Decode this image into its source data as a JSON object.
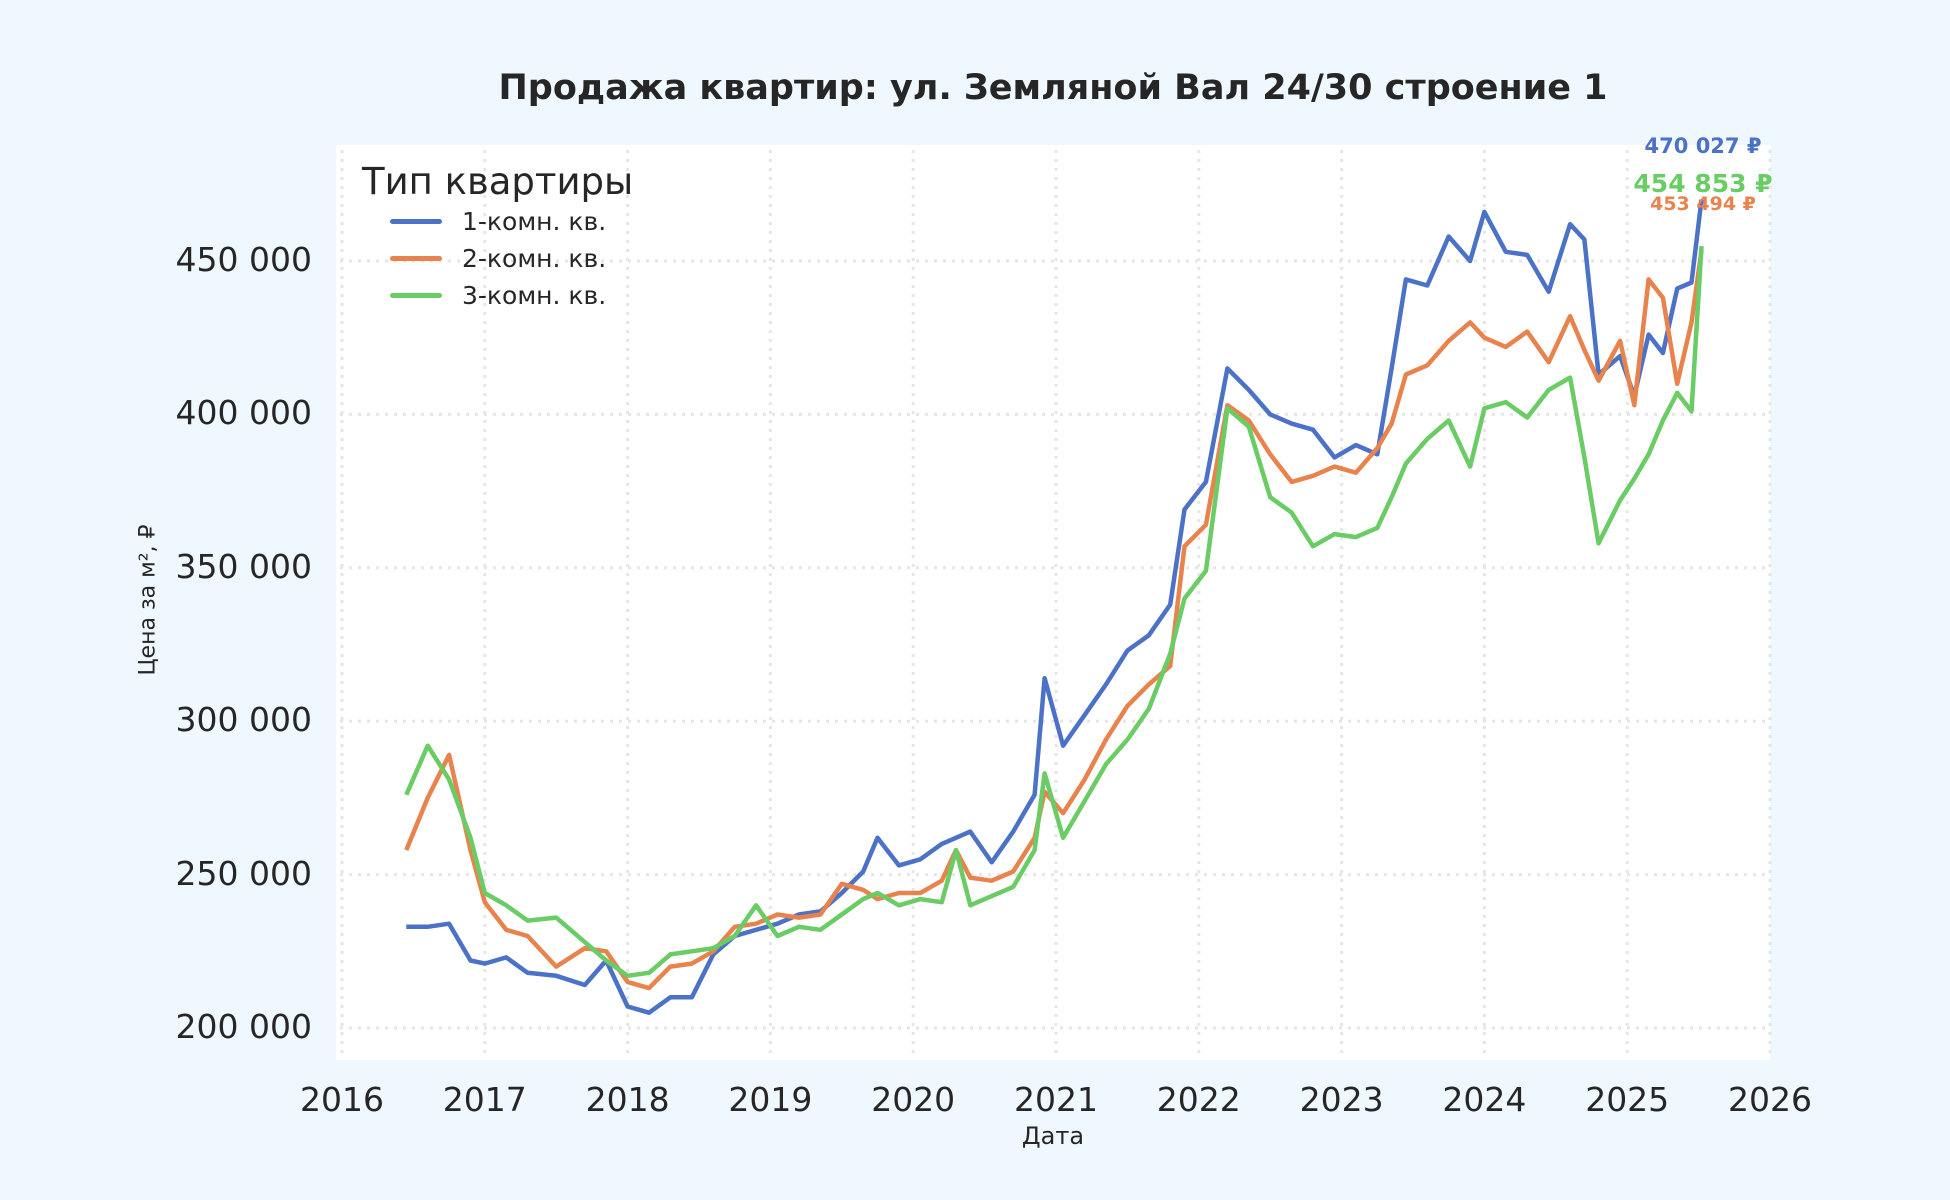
{
  "chart_data": {
    "type": "line",
    "title": "Продажа квартир: ул. Земляной Вал 24/30 строение 1",
    "xlabel": "Дата",
    "ylabel": "Цена за м², ₽",
    "xlim": [
      2016,
      2026
    ],
    "ylim": [
      193000,
      487000
    ],
    "grid": true,
    "legend_position": "upper left",
    "legend_title": "Тип квартиры",
    "x_ticks": [
      "2016",
      "2017",
      "2018",
      "2019",
      "2020",
      "2021",
      "2022",
      "2023",
      "2024",
      "2025",
      "2026"
    ],
    "y_ticks": [
      "200 000",
      "250 000",
      "300 000",
      "350 000",
      "400 000",
      "450 000"
    ],
    "y_tick_values": [
      200000,
      250000,
      300000,
      350000,
      400000,
      450000
    ],
    "x": [
      2016.45,
      2016.6,
      2016.75,
      2016.9,
      2017.0,
      2017.15,
      2017.3,
      2017.5,
      2017.7,
      2017.85,
      2018.0,
      2018.15,
      2018.3,
      2018.45,
      2018.6,
      2018.75,
      2018.9,
      2019.05,
      2019.2,
      2019.35,
      2019.5,
      2019.65,
      2019.75,
      2019.9,
      2020.05,
      2020.2,
      2020.3,
      2020.4,
      2020.55,
      2020.7,
      2020.85,
      2020.92,
      2021.05,
      2021.2,
      2021.35,
      2021.5,
      2021.65,
      2021.8,
      2021.9,
      2022.05,
      2022.2,
      2022.35,
      2022.5,
      2022.65,
      2022.8,
      2022.95,
      2023.1,
      2023.25,
      2023.35,
      2023.45,
      2023.6,
      2023.75,
      2023.9,
      2024.0,
      2024.15,
      2024.3,
      2024.45,
      2024.6,
      2024.7,
      2024.8,
      2024.95,
      2025.05,
      2025.15,
      2025.25,
      2025.35,
      2025.45,
      2025.52
    ],
    "series": [
      {
        "name": "1-комн. кв.",
        "color": "#4c72c8",
        "values": [
          233000,
          233000,
          234000,
          222000,
          221000,
          223000,
          218000,
          217000,
          214000,
          222000,
          207000,
          205000,
          210000,
          210000,
          224000,
          230000,
          232000,
          234000,
          237000,
          238000,
          244000,
          251000,
          262000,
          253000,
          255000,
          260000,
          262000,
          264000,
          254000,
          264000,
          276000,
          314000,
          292000,
          302000,
          312000,
          323000,
          328000,
          338000,
          369000,
          378000,
          415000,
          408000,
          400000,
          397000,
          395000,
          386000,
          390000,
          387000,
          415000,
          444000,
          442000,
          458000,
          450000,
          466000,
          453000,
          452000,
          440000,
          462000,
          457000,
          413000,
          419000,
          406000,
          426000,
          420000,
          441000,
          443000,
          470027
        ]
      },
      {
        "name": "2-комн. кв.",
        "color": "#e8834e",
        "values": [
          258000,
          275000,
          289000,
          258000,
          241000,
          232000,
          230000,
          220000,
          226000,
          225000,
          215000,
          213000,
          220000,
          221000,
          225000,
          233000,
          234000,
          237000,
          236000,
          237000,
          247000,
          245000,
          242000,
          244000,
          244000,
          248000,
          258000,
          249000,
          248000,
          251000,
          262000,
          277000,
          270000,
          281000,
          294000,
          305000,
          312000,
          318000,
          357000,
          364000,
          403000,
          398000,
          387000,
          378000,
          380000,
          383000,
          381000,
          389000,
          397000,
          413000,
          416000,
          424000,
          430000,
          425000,
          422000,
          427000,
          417000,
          432000,
          421000,
          411000,
          424000,
          403000,
          444000,
          438000,
          410000,
          430000,
          453494
        ]
      },
      {
        "name": "3-комн. кв.",
        "color": "#6acc64",
        "values": [
          276000,
          292000,
          281000,
          262000,
          244000,
          240000,
          235000,
          236000,
          228000,
          222000,
          217000,
          218000,
          224000,
          225000,
          226000,
          230000,
          240000,
          230000,
          233000,
          232000,
          237000,
          242000,
          244000,
          240000,
          242000,
          241000,
          258000,
          240000,
          243000,
          246000,
          258000,
          283000,
          262000,
          274000,
          286000,
          294000,
          304000,
          322000,
          340000,
          349000,
          402000,
          396000,
          373000,
          368000,
          357000,
          361000,
          360000,
          363000,
          373000,
          384000,
          392000,
          398000,
          383000,
          402000,
          404000,
          399000,
          408000,
          412000,
          386000,
          358000,
          372000,
          379000,
          387000,
          398000,
          407000,
          401000,
          454853
        ]
      }
    ],
    "annotations": [
      {
        "text": "470 027 ₽",
        "series": "1-комн. кв.",
        "color": "#4c72c8"
      },
      {
        "text": "454 853 ₽",
        "series": "3-комн. кв.",
        "color": "#6acc64"
      },
      {
        "text": "453 494 ₽",
        "series": "2-комн. кв.",
        "color": "#e8834e"
      }
    ]
  },
  "title": "Продажа квартир: ул. Земляной Вал 24/30 строение 1",
  "axes": {
    "xlabel": "Дата",
    "ylabel": "Цена за м², ₽",
    "x_ticks": [
      "2016",
      "2017",
      "2018",
      "2019",
      "2020",
      "2021",
      "2022",
      "2023",
      "2024",
      "2025",
      "2026"
    ],
    "y_ticks": [
      "200 000",
      "250 000",
      "300 000",
      "350 000",
      "400 000",
      "450 000"
    ]
  },
  "legend": {
    "title": "Тип квартиры",
    "items": [
      {
        "label": "1-комн. кв.",
        "color": "#4c72c8"
      },
      {
        "label": "2-комн. кв.",
        "color": "#e8834e"
      },
      {
        "label": "3-комн. кв.",
        "color": "#6acc64"
      }
    ]
  },
  "end_labels": [
    {
      "text": "470 027 ₽",
      "color": "#4c72c8"
    },
    {
      "text": "454 853 ₽",
      "color": "#6acc64"
    },
    {
      "text": "453 494 ₽",
      "color": "#e8834e"
    }
  ],
  "colors": {
    "background": "#eff7ff",
    "plot_bg": "#ffffff",
    "grid": "#e6e6e6",
    "text": "#262626"
  }
}
